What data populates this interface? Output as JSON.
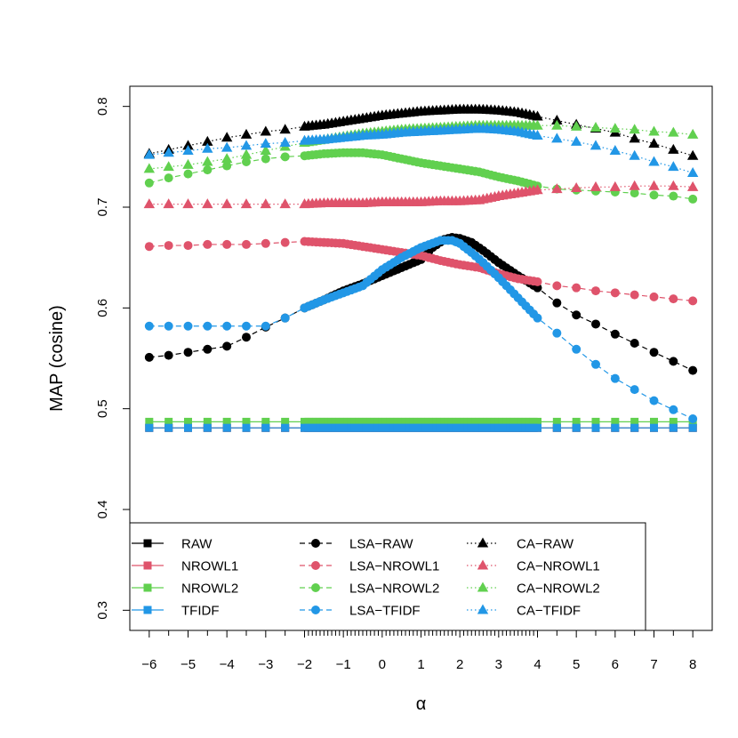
{
  "chart_data": {
    "type": "line",
    "xlabel": "α",
    "ylabel": "MAP (cosine)",
    "xlim": [
      -6.5,
      8.5
    ],
    "ylim": [
      0.28,
      0.82
    ],
    "x_ticks": [
      -6,
      -5,
      -4,
      -3,
      -2,
      -1,
      0,
      1,
      2,
      3,
      4,
      5,
      6,
      7,
      8
    ],
    "x_tick_labels": [
      "−6",
      "−5",
      "−4",
      "−3",
      "−2",
      "−1",
      "0",
      "1",
      "2",
      "3",
      "4",
      "5",
      "6",
      "7",
      "8"
    ],
    "y_ticks": [
      0.3,
      0.4,
      0.5,
      0.6,
      0.7,
      0.8
    ],
    "y_tick_labels": [
      "0.3",
      "0.4",
      "0.5",
      "0.6",
      "0.7",
      "0.8"
    ],
    "x_points": [
      -6,
      -5.5,
      -5,
      -4.5,
      -4,
      -3.5,
      -3,
      -2.5,
      -2,
      -1.9,
      -1.8,
      -1.7,
      -1.6,
      -1.5,
      -1.4,
      -1.3,
      -1.2,
      -1.1,
      -1,
      -0.9,
      -0.8,
      -0.7,
      -0.6,
      -0.5,
      -0.4,
      -0.3,
      -0.2,
      -0.1,
      0,
      0.1,
      0.2,
      0.3,
      0.4,
      0.5,
      0.6,
      0.7,
      0.8,
      0.9,
      1,
      1.1,
      1.2,
      1.3,
      1.4,
      1.5,
      1.6,
      1.7,
      1.8,
      1.9,
      2,
      2.1,
      2.2,
      2.3,
      2.4,
      2.5,
      2.6,
      2.7,
      2.8,
      2.9,
      3,
      3.1,
      3.2,
      3.3,
      3.4,
      3.5,
      3.6,
      3.7,
      3.8,
      3.9,
      4,
      4.5,
      5,
      5.5,
      6,
      6.5,
      7,
      7.5,
      8
    ],
    "series": [
      {
        "name": "RAW",
        "color": "#000000",
        "marker": "square",
        "line": "solid",
        "constant": 0.481
      },
      {
        "name": "NROWL1",
        "color": "#DF536B",
        "marker": "square",
        "line": "solid",
        "constant": 0.481
      },
      {
        "name": "NROWL2",
        "color": "#61D04F",
        "marker": "square",
        "line": "solid",
        "constant": 0.487
      },
      {
        "name": "TFIDF",
        "color": "#2297E6",
        "marker": "square",
        "line": "solid",
        "constant": 0.481
      },
      {
        "name": "LSA−RAW",
        "color": "#000000",
        "marker": "circle",
        "line": "dashed",
        "knots": [
          [
            -6,
            0.551
          ],
          [
            -5.5,
            0.553
          ],
          [
            -5,
            0.556
          ],
          [
            -4.5,
            0.559
          ],
          [
            -4,
            0.562
          ],
          [
            -3.5,
            0.571
          ],
          [
            -3,
            0.581
          ],
          [
            -2.5,
            0.59
          ],
          [
            -2,
            0.6
          ],
          [
            -1.5,
            0.608
          ],
          [
            -1,
            0.617
          ],
          [
            -0.5,
            0.624
          ],
          [
            0,
            0.632
          ],
          [
            0.5,
            0.64
          ],
          [
            1,
            0.648
          ],
          [
            1.3,
            0.66
          ],
          [
            1.6,
            0.668
          ],
          [
            1.8,
            0.67
          ],
          [
            2,
            0.669
          ],
          [
            2.3,
            0.665
          ],
          [
            2.6,
            0.657
          ],
          [
            3,
            0.645
          ],
          [
            3.5,
            0.632
          ],
          [
            4,
            0.62
          ],
          [
            4.5,
            0.605
          ],
          [
            5,
            0.593
          ],
          [
            5.5,
            0.584
          ],
          [
            6,
            0.574
          ],
          [
            6.5,
            0.565
          ],
          [
            7,
            0.556
          ],
          [
            7.5,
            0.547
          ],
          [
            8,
            0.538
          ]
        ]
      },
      {
        "name": "LSA−NROWL1",
        "color": "#DF536B",
        "marker": "circle",
        "line": "dashed",
        "knots": [
          [
            -6,
            0.661
          ],
          [
            -5.5,
            0.662
          ],
          [
            -5,
            0.662
          ],
          [
            -4.5,
            0.663
          ],
          [
            -4,
            0.663
          ],
          [
            -3.5,
            0.663
          ],
          [
            -3,
            0.664
          ],
          [
            -2.5,
            0.665
          ],
          [
            -2,
            0.666
          ],
          [
            -1.5,
            0.665
          ],
          [
            -1,
            0.664
          ],
          [
            -0.5,
            0.661
          ],
          [
            0,
            0.658
          ],
          [
            0.5,
            0.655
          ],
          [
            1,
            0.652
          ],
          [
            1.5,
            0.647
          ],
          [
            2,
            0.643
          ],
          [
            2.5,
            0.64
          ],
          [
            3,
            0.634
          ],
          [
            3.5,
            0.629
          ],
          [
            4,
            0.626
          ],
          [
            4.5,
            0.622
          ],
          [
            5,
            0.62
          ],
          [
            5.5,
            0.617
          ],
          [
            6,
            0.615
          ],
          [
            6.5,
            0.613
          ],
          [
            7,
            0.611
          ],
          [
            7.5,
            0.609
          ],
          [
            8,
            0.607
          ]
        ]
      },
      {
        "name": "LSA−NROWL2",
        "color": "#61D04F",
        "marker": "circle",
        "line": "dashed",
        "knots": [
          [
            -6,
            0.724
          ],
          [
            -5.5,
            0.729
          ],
          [
            -5,
            0.733
          ],
          [
            -4.5,
            0.737
          ],
          [
            -4,
            0.741
          ],
          [
            -3.5,
            0.745
          ],
          [
            -3,
            0.748
          ],
          [
            -2.5,
            0.75
          ],
          [
            -2,
            0.751
          ],
          [
            -1.5,
            0.753
          ],
          [
            -1,
            0.754
          ],
          [
            -0.5,
            0.754
          ],
          [
            0,
            0.752
          ],
          [
            0.5,
            0.748
          ],
          [
            1,
            0.744
          ],
          [
            1.5,
            0.741
          ],
          [
            2,
            0.738
          ],
          [
            2.5,
            0.735
          ],
          [
            3,
            0.73
          ],
          [
            3.5,
            0.726
          ],
          [
            4,
            0.721
          ],
          [
            4.5,
            0.718
          ],
          [
            5,
            0.717
          ],
          [
            5.5,
            0.716
          ],
          [
            6,
            0.715
          ],
          [
            6.5,
            0.714
          ],
          [
            7,
            0.712
          ],
          [
            7.5,
            0.711
          ],
          [
            8,
            0.708
          ]
        ]
      },
      {
        "name": "LSA−TFIDF",
        "color": "#2297E6",
        "marker": "circle",
        "line": "dashed",
        "knots": [
          [
            -6,
            0.582
          ],
          [
            -5.5,
            0.582
          ],
          [
            -5,
            0.582
          ],
          [
            -4.5,
            0.582
          ],
          [
            -4,
            0.582
          ],
          [
            -3.5,
            0.582
          ],
          [
            -3,
            0.582
          ],
          [
            -2.5,
            0.59
          ],
          [
            -2,
            0.6
          ],
          [
            -1.5,
            0.608
          ],
          [
            -1,
            0.615
          ],
          [
            -0.5,
            0.622
          ],
          [
            0,
            0.638
          ],
          [
            0.5,
            0.65
          ],
          [
            1,
            0.66
          ],
          [
            1.5,
            0.667
          ],
          [
            1.8,
            0.667
          ],
          [
            2,
            0.664
          ],
          [
            2.3,
            0.655
          ],
          [
            2.6,
            0.645
          ],
          [
            3,
            0.63
          ],
          [
            3.5,
            0.61
          ],
          [
            4,
            0.59
          ],
          [
            4.5,
            0.575
          ],
          [
            5,
            0.559
          ],
          [
            5.5,
            0.544
          ],
          [
            6,
            0.53
          ],
          [
            6.5,
            0.519
          ],
          [
            7,
            0.508
          ],
          [
            7.5,
            0.499
          ],
          [
            8,
            0.49
          ]
        ]
      },
      {
        "name": "CA−RAW",
        "color": "#000000",
        "marker": "triangle",
        "line": "dotted",
        "knots": [
          [
            -6,
            0.753
          ],
          [
            -5.5,
            0.757
          ],
          [
            -5,
            0.761
          ],
          [
            -4.5,
            0.765
          ],
          [
            -4,
            0.769
          ],
          [
            -3.5,
            0.772
          ],
          [
            -3,
            0.775
          ],
          [
            -2.5,
            0.777
          ],
          [
            -2,
            0.78
          ],
          [
            -1.5,
            0.782
          ],
          [
            -1,
            0.785
          ],
          [
            -0.5,
            0.788
          ],
          [
            0,
            0.791
          ],
          [
            0.5,
            0.793
          ],
          [
            1,
            0.795
          ],
          [
            1.5,
            0.796
          ],
          [
            2,
            0.797
          ],
          [
            2.5,
            0.797
          ],
          [
            3,
            0.796
          ],
          [
            3.5,
            0.794
          ],
          [
            4,
            0.79
          ],
          [
            4.5,
            0.786
          ],
          [
            5,
            0.782
          ],
          [
            5.5,
            0.778
          ],
          [
            6,
            0.774
          ],
          [
            6.5,
            0.768
          ],
          [
            7,
            0.763
          ],
          [
            7.5,
            0.757
          ],
          [
            8,
            0.751
          ]
        ]
      },
      {
        "name": "CA−NROWL1",
        "color": "#DF536B",
        "marker": "triangle",
        "line": "dotted",
        "knots": [
          [
            -6,
            0.703
          ],
          [
            -5.5,
            0.703
          ],
          [
            -5,
            0.703
          ],
          [
            -4.5,
            0.703
          ],
          [
            -4,
            0.703
          ],
          [
            -3.5,
            0.703
          ],
          [
            -3,
            0.703
          ],
          [
            -2.5,
            0.703
          ],
          [
            -2,
            0.703
          ],
          [
            -1.5,
            0.704
          ],
          [
            -1,
            0.704
          ],
          [
            -0.5,
            0.704
          ],
          [
            0,
            0.705
          ],
          [
            0.5,
            0.705
          ],
          [
            1,
            0.705
          ],
          [
            1.5,
            0.706
          ],
          [
            2,
            0.706
          ],
          [
            2.5,
            0.707
          ],
          [
            3,
            0.711
          ],
          [
            3.5,
            0.714
          ],
          [
            4,
            0.717
          ],
          [
            4.5,
            0.718
          ],
          [
            5,
            0.719
          ],
          [
            5.5,
            0.72
          ],
          [
            6,
            0.72
          ],
          [
            6.5,
            0.721
          ],
          [
            7,
            0.721
          ],
          [
            7.5,
            0.721
          ],
          [
            8,
            0.72
          ]
        ]
      },
      {
        "name": "CA−NROWL2",
        "color": "#61D04F",
        "marker": "triangle",
        "line": "dotted",
        "knots": [
          [
            -6,
            0.738
          ],
          [
            -5.5,
            0.74
          ],
          [
            -5,
            0.742
          ],
          [
            -4.5,
            0.745
          ],
          [
            -4,
            0.748
          ],
          [
            -3.5,
            0.752
          ],
          [
            -3,
            0.756
          ],
          [
            -2.5,
            0.76
          ],
          [
            -2,
            0.764
          ],
          [
            -1.5,
            0.767
          ],
          [
            -1,
            0.77
          ],
          [
            -0.5,
            0.773
          ],
          [
            0,
            0.775
          ],
          [
            0.5,
            0.777
          ],
          [
            1,
            0.778
          ],
          [
            1.5,
            0.779
          ],
          [
            2,
            0.78
          ],
          [
            2.5,
            0.781
          ],
          [
            3,
            0.781
          ],
          [
            3.5,
            0.781
          ],
          [
            4,
            0.781
          ],
          [
            4.5,
            0.781
          ],
          [
            5,
            0.78
          ],
          [
            5.5,
            0.779
          ],
          [
            6,
            0.778
          ],
          [
            6.5,
            0.777
          ],
          [
            7,
            0.775
          ],
          [
            7.5,
            0.774
          ],
          [
            8,
            0.772
          ]
        ]
      },
      {
        "name": "CA−TFIDF",
        "color": "#2297E6",
        "marker": "triangle",
        "line": "dotted",
        "knots": [
          [
            -6,
            0.752
          ],
          [
            -5.5,
            0.754
          ],
          [
            -5,
            0.756
          ],
          [
            -4.5,
            0.758
          ],
          [
            -4,
            0.759
          ],
          [
            -3.5,
            0.761
          ],
          [
            -3,
            0.763
          ],
          [
            -2.5,
            0.764
          ],
          [
            -2,
            0.766
          ],
          [
            -1.5,
            0.767
          ],
          [
            -1,
            0.769
          ],
          [
            -0.5,
            0.771
          ],
          [
            0,
            0.772
          ],
          [
            0.5,
            0.774
          ],
          [
            1,
            0.775
          ],
          [
            1.5,
            0.776
          ],
          [
            2,
            0.777
          ],
          [
            2.5,
            0.778
          ],
          [
            3,
            0.777
          ],
          [
            3.5,
            0.775
          ],
          [
            4,
            0.771
          ],
          [
            4.5,
            0.768
          ],
          [
            5,
            0.765
          ],
          [
            5.5,
            0.761
          ],
          [
            6,
            0.756
          ],
          [
            6.5,
            0.751
          ],
          [
            7,
            0.745
          ],
          [
            7.5,
            0.74
          ],
          [
            8,
            0.734
          ]
        ]
      }
    ],
    "legend": {
      "position": "bottom-left",
      "columns": [
        [
          "RAW",
          "NROWL1",
          "NROWL2",
          "TFIDF"
        ],
        [
          "LSA−RAW",
          "LSA−NROWL1",
          "LSA−NROWL2",
          "LSA−TFIDF"
        ],
        [
          "CA−RAW",
          "CA−NROWL1",
          "CA−NROWL2",
          "CA−TFIDF"
        ]
      ]
    }
  }
}
